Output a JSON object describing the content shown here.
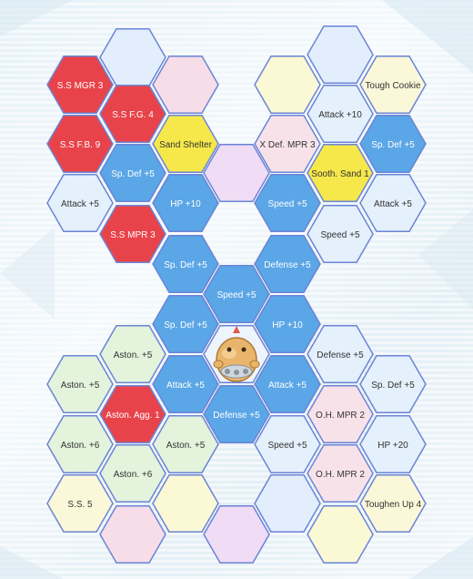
{
  "colors": {
    "red": "#e8434a",
    "yellow": "#f6e84a",
    "blue": "#5aa6e6",
    "stroke": "#6b84d6",
    "empty_blue": "#e3eefc",
    "empty_pink": "#f7dde8",
    "empty_yellow": "#fbf8d6",
    "empty_purple": "#f0dcf5",
    "light_green": "#e3f3dc",
    "light_blue": "#e4f0fb",
    "light_pink": "#f8e2ea",
    "light_yellow": "#fbf7d9"
  },
  "center_pokemon": {
    "icon": "pokemon-sprite-icon"
  },
  "nodes": [
    {
      "label": "",
      "fill": "empty_blue"
    },
    {
      "label": "S.S MGR 3",
      "fill": "red"
    },
    {
      "label": "S.S F.G. 4",
      "fill": "red"
    },
    {
      "label": "",
      "fill": "empty_pink"
    },
    {
      "label": "S.S F.B. 9",
      "fill": "red"
    },
    {
      "label": "Sand Shelter",
      "fill": "yellow"
    },
    {
      "label": "Sp. Def +5",
      "fill": "blue"
    },
    {
      "label": "Attack +5",
      "fill": "light_blue"
    },
    {
      "label": "HP +10",
      "fill": "blue"
    },
    {
      "label": "S.S MPR 3",
      "fill": "red"
    },
    {
      "label": "",
      "fill": "empty_purple"
    },
    {
      "label": "",
      "fill": "empty_blue"
    },
    {
      "label": "",
      "fill": "empty_yellow"
    },
    {
      "label": "Tough Cookie",
      "fill": "light_yellow"
    },
    {
      "label": "Attack +10",
      "fill": "light_blue"
    },
    {
      "label": "X Def. MPR 3",
      "fill": "light_pink"
    },
    {
      "label": "Sp. Def +5",
      "fill": "blue"
    },
    {
      "label": "Sooth. Sand 1",
      "fill": "yellow"
    },
    {
      "label": "Speed +5",
      "fill": "blue"
    },
    {
      "label": "Attack +5",
      "fill": "light_blue"
    },
    {
      "label": "Speed +5",
      "fill": "light_blue"
    },
    {
      "label": "Sp. Def +5",
      "fill": "blue"
    },
    {
      "label": "Defense +5",
      "fill": "blue"
    },
    {
      "label": "Speed +5",
      "fill": "blue"
    },
    {
      "label": "Sp. Def +5",
      "fill": "blue"
    },
    {
      "label": "HP +10",
      "fill": "blue"
    },
    {
      "label": "Aston. +5",
      "fill": "light_green"
    },
    {
      "label": "Aston. +5",
      "fill": "light_green"
    },
    {
      "label": "Attack +5",
      "fill": "blue"
    },
    {
      "label": "Aston. Agg. 1",
      "fill": "red"
    },
    {
      "label": "Aston. +6",
      "fill": "light_green"
    },
    {
      "label": "Aston. +5",
      "fill": "light_green"
    },
    {
      "label": "Aston. +6",
      "fill": "light_green"
    },
    {
      "label": "S.S. 5",
      "fill": "light_yellow"
    },
    {
      "label": "",
      "fill": "empty_pink"
    },
    {
      "label": "",
      "fill": "empty_yellow"
    },
    {
      "label": "",
      "fill": "empty_purple"
    },
    {
      "label": "Defense +5",
      "fill": "blue"
    },
    {
      "label": "Attack +5",
      "fill": "blue"
    },
    {
      "label": "Defense +5",
      "fill": "light_blue"
    },
    {
      "label": "Sp. Def +5",
      "fill": "light_blue"
    },
    {
      "label": "O.H. MPR 2",
      "fill": "light_pink"
    },
    {
      "label": "Speed +5",
      "fill": "light_blue"
    },
    {
      "label": "HP +20",
      "fill": "light_blue"
    },
    {
      "label": "O.H. MPR 2",
      "fill": "light_pink"
    },
    {
      "label": "Toughen Up 4",
      "fill": "light_yellow"
    },
    {
      "label": "",
      "fill": "empty_blue"
    },
    {
      "label": "",
      "fill": "empty_yellow"
    }
  ]
}
